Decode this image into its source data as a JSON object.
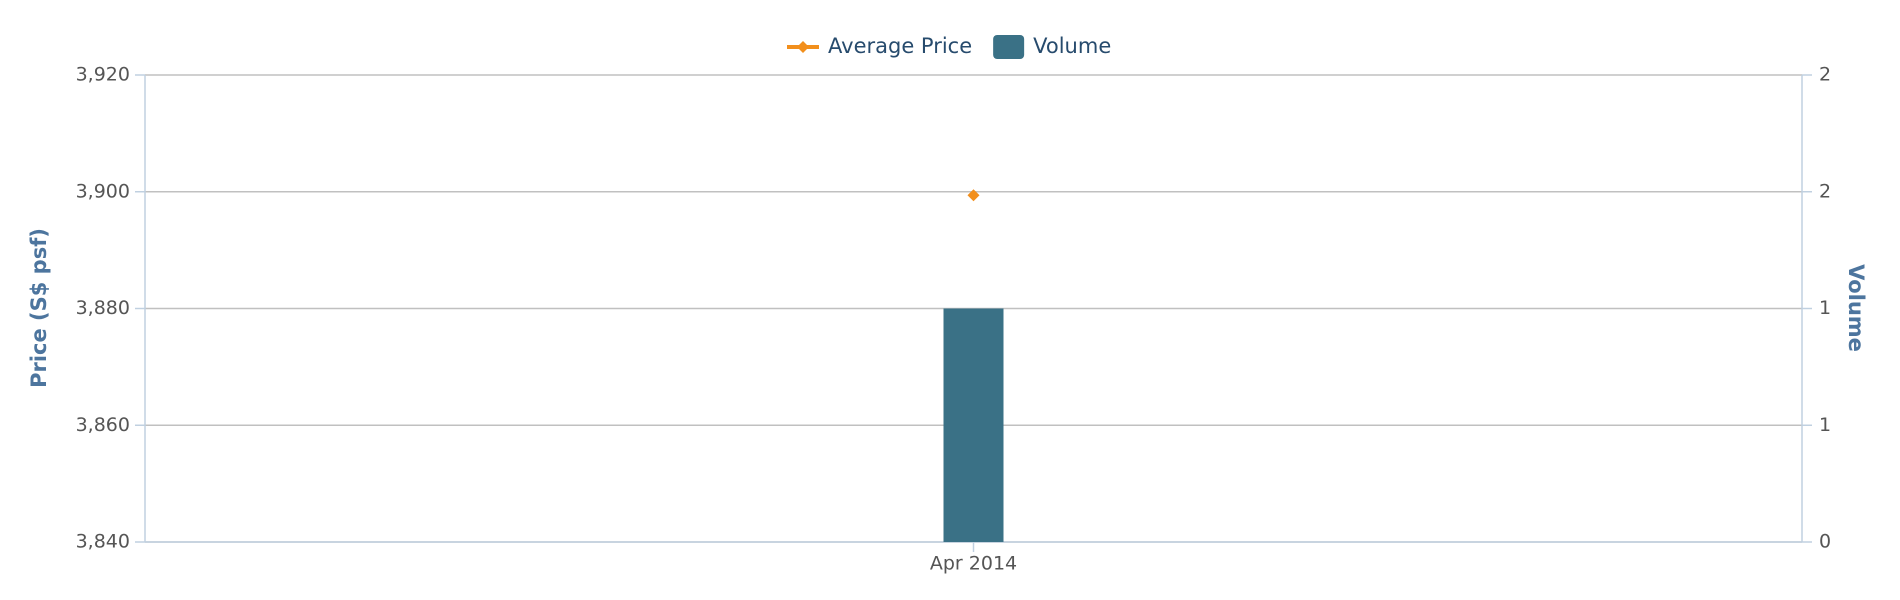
{
  "chart_data": {
    "type": "combo",
    "categories": [
      "Apr 2014"
    ],
    "series": [
      {
        "name": "Average Price",
        "type": "line",
        "color": "#f28f1c",
        "values": [
          3899.4
        ]
      },
      {
        "name": "Volume",
        "type": "bar",
        "axis": "y2",
        "color": "#3a7186",
        "values": [
          1
        ]
      }
    ],
    "ylabel": "Price (S$ psf)",
    "y2label": "Volume",
    "ylim": [
      3840,
      3920
    ],
    "yticks": [
      {
        "value": 3840,
        "label": "3,840"
      },
      {
        "value": 3860,
        "label": "3,860"
      },
      {
        "value": 3880,
        "label": "3,880"
      },
      {
        "value": 3900,
        "label": "3,900"
      },
      {
        "value": 3920,
        "label": "3,920"
      }
    ],
    "y2lim": [
      0,
      2
    ],
    "y2ticks": [
      0,
      {
        "value": 0.5,
        "label": "1"
      },
      1,
      {
        "value": 1.5,
        "label": "2"
      },
      2
    ],
    "grid": true,
    "legend": "top"
  }
}
